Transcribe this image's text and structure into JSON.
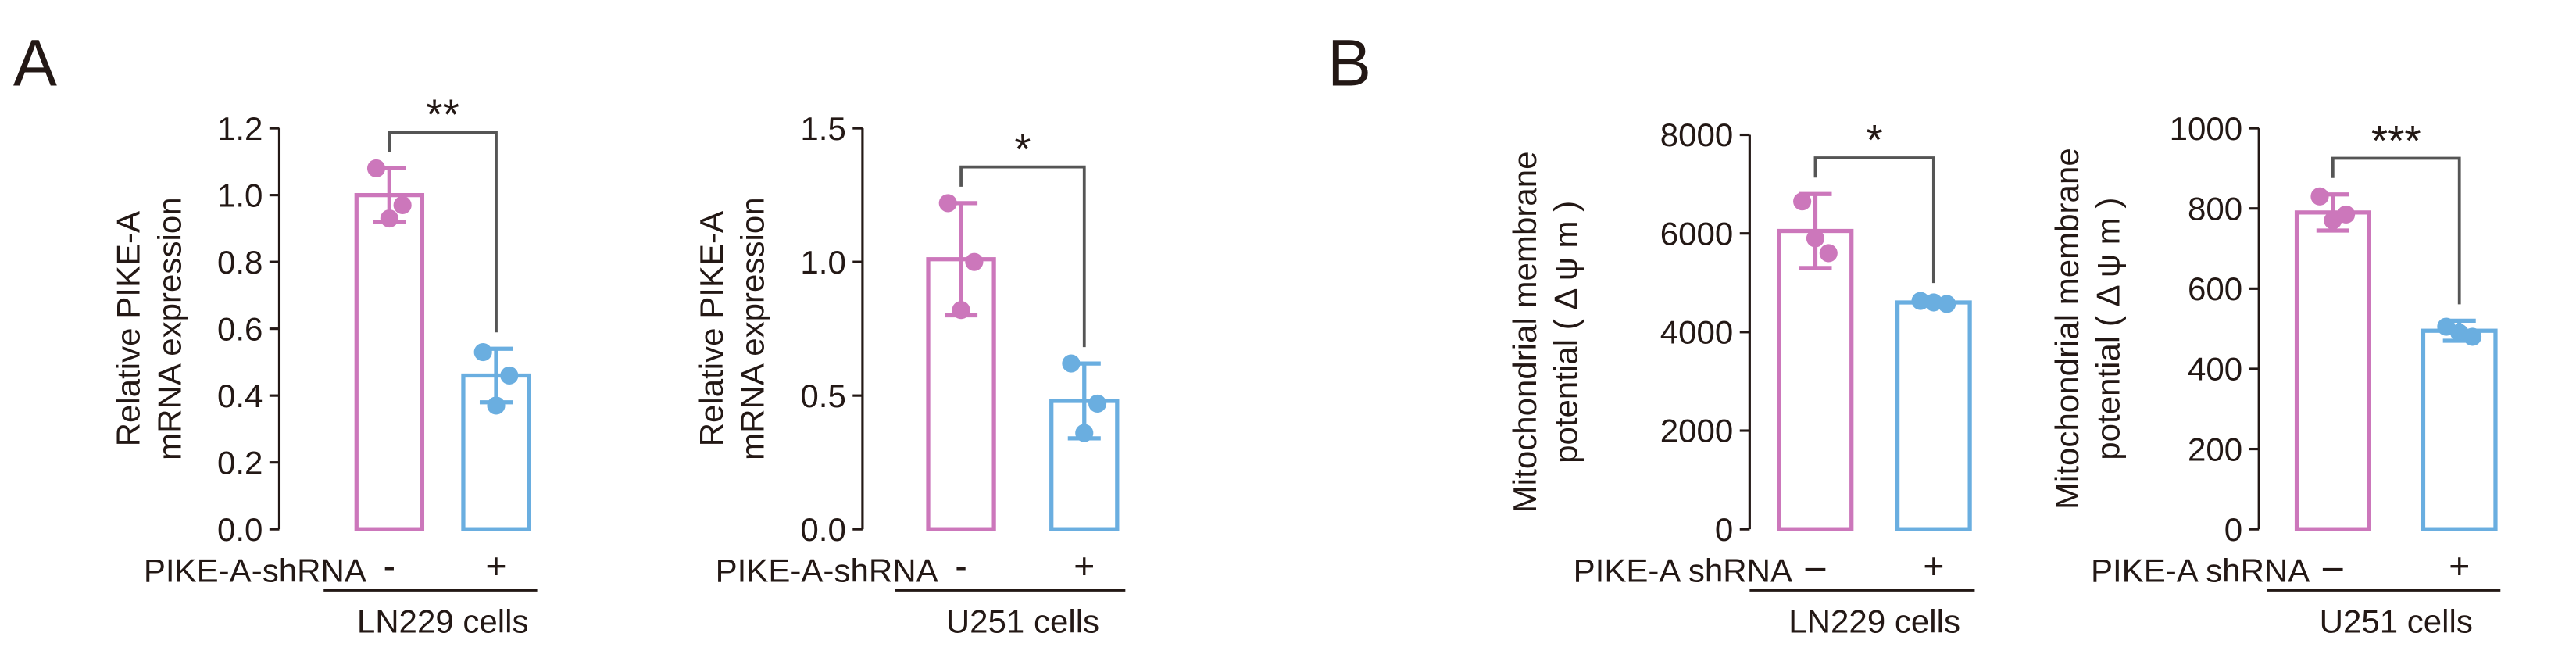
{
  "panels": [
    "A",
    "B"
  ],
  "chart_data": [
    {
      "type": "bar",
      "ylabel": [
        "Relative PIKE-A",
        "mRNA expression"
      ],
      "categories": [
        "-",
        "+"
      ],
      "values": [
        1.0,
        0.46
      ],
      "errors": [
        0.08,
        0.08
      ],
      "points": [
        [
          1.08,
          0.93,
          0.97
        ],
        [
          0.53,
          0.37,
          0.46
        ]
      ],
      "colors": [
        "#cc77bb",
        "#6aaee0"
      ],
      "ylim": [
        0,
        1.2
      ],
      "yticks": [
        {
          "value": 0,
          "label": "0.0"
        },
        0.2,
        0.4,
        0.6,
        0.8,
        {
          "value": 1,
          "label": "1.0"
        },
        1.2
      ],
      "significance": "**",
      "group_label": "PIKE-A-shRNA",
      "cell_label": "LN229 cells"
    },
    {
      "type": "bar",
      "ylabel": [
        "Relative PIKE-A",
        "mRNA expression"
      ],
      "categories": [
        "-",
        "+"
      ],
      "values": [
        1.01,
        0.48
      ],
      "errors": [
        0.21,
        0.14
      ],
      "points": [
        [
          1.22,
          0.82,
          1.0
        ],
        [
          0.62,
          0.36,
          0.47
        ]
      ],
      "colors": [
        "#cc77bb",
        "#6aaee0"
      ],
      "ylim": [
        0,
        1.5
      ],
      "yticks": [
        {
          "value": 0,
          "label": "0.0"
        },
        0.5,
        {
          "value": 1,
          "label": "1.0"
        },
        1.5
      ],
      "significance": "*",
      "group_label": "PIKE-A-shRNA",
      "cell_label": "U251 cells"
    },
    {
      "type": "bar",
      "ylabel": [
        "Mitochondrial membrane",
        "potential ( Δ ψ m )"
      ],
      "categories": [
        "–",
        "+"
      ],
      "values": [
        6050,
        4600
      ],
      "errors": [
        750,
        60
      ],
      "points": [
        [
          6650,
          5900,
          5600
        ],
        [
          4630,
          4600,
          4570
        ]
      ],
      "colors": [
        "#cc77bb",
        "#6aaee0"
      ],
      "ylim": [
        0,
        8000
      ],
      "yticks": [
        0,
        2000,
        4000,
        6000,
        8000
      ],
      "significance": "*",
      "group_label": "PIKE-A shRNA",
      "cell_label": "LN229 cells"
    },
    {
      "type": "bar",
      "ylabel": [
        "Mitochondrial membrane",
        "potential ( Δ ψ m )"
      ],
      "categories": [
        "–",
        "+"
      ],
      "values": [
        790,
        495
      ],
      "errors": [
        45,
        25
      ],
      "points": [
        [
          830,
          770,
          785
        ],
        [
          505,
          490,
          480
        ]
      ],
      "colors": [
        "#cc77bb",
        "#6aaee0"
      ],
      "ylim": [
        0,
        1000
      ],
      "yticks": [
        0,
        200,
        400,
        600,
        800,
        1000
      ],
      "significance": "***",
      "group_label": "PIKE-A shRNA",
      "cell_label": "U251 cells"
    }
  ]
}
